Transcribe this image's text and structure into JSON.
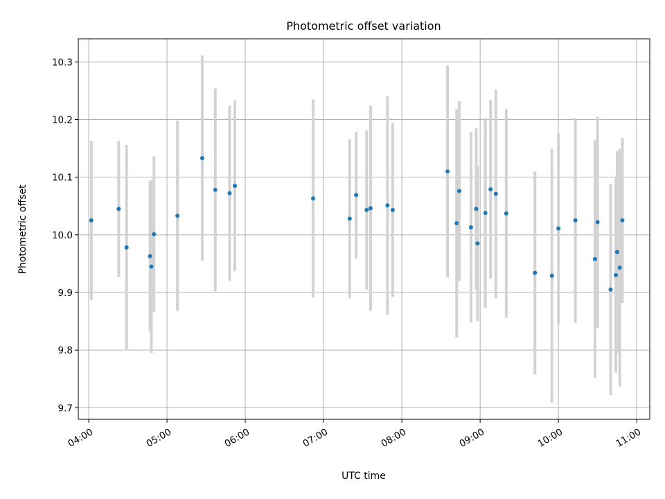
{
  "chart_data": {
    "type": "scatter",
    "title": "Photometric offset variation",
    "xlabel": "UTC time",
    "ylabel": "Photometric offset",
    "x_unit": "UTC time (HH:MM)",
    "xlim": [
      "03:52",
      "11:10"
    ],
    "ylim": [
      9.68,
      10.34
    ],
    "x_ticks": [
      "04:00",
      "05:00",
      "06:00",
      "07:00",
      "08:00",
      "09:00",
      "10:00",
      "11:00"
    ],
    "y_ticks": [
      9.7,
      9.8,
      9.9,
      10.0,
      10.1,
      10.2,
      10.3
    ],
    "y_tick_labels": [
      "9.7",
      "9.8",
      "9.9",
      "10.0",
      "10.1",
      "10.2",
      "10.3"
    ],
    "grid": true,
    "point_color": "#1f77b4",
    "errorbar_color": "#d3d3d3",
    "series": [
      {
        "points": [
          {
            "x": "04:02",
            "y": 10.025,
            "yerr": 0.138
          },
          {
            "x": "04:23",
            "y": 10.045,
            "yerr": 0.118
          },
          {
            "x": "04:29",
            "y": 9.978,
            "yerr": 0.178
          },
          {
            "x": "04:47",
            "y": 9.963,
            "yerr": 0.13
          },
          {
            "x": "04:48",
            "y": 9.945,
            "yerr": 0.15
          },
          {
            "x": "04:50",
            "y": 10.001,
            "yerr": 0.135
          },
          {
            "x": "05:08",
            "y": 10.033,
            "yerr": 0.165
          },
          {
            "x": "05:27",
            "y": 10.133,
            "yerr": 0.178
          },
          {
            "x": "05:37",
            "y": 10.078,
            "yerr": 0.176
          },
          {
            "x": "05:48",
            "y": 10.072,
            "yerr": 0.152
          },
          {
            "x": "05:52",
            "y": 10.085,
            "yerr": 0.148
          },
          {
            "x": "06:52",
            "y": 10.063,
            "yerr": 0.172
          },
          {
            "x": "07:20",
            "y": 10.028,
            "yerr": 0.138
          },
          {
            "x": "07:25",
            "y": 10.069,
            "yerr": 0.11
          },
          {
            "x": "07:33",
            "y": 10.043,
            "yerr": 0.138
          },
          {
            "x": "07:36",
            "y": 10.046,
            "yerr": 0.178
          },
          {
            "x": "07:49",
            "y": 10.051,
            "yerr": 0.19
          },
          {
            "x": "07:53",
            "y": 10.043,
            "yerr": 0.151
          },
          {
            "x": "08:35",
            "y": 10.11,
            "yerr": 0.184
          },
          {
            "x": "08:42",
            "y": 10.02,
            "yerr": 0.198
          },
          {
            "x": "08:44",
            "y": 10.076,
            "yerr": 0.156
          },
          {
            "x": "08:53",
            "y": 10.013,
            "yerr": 0.165
          },
          {
            "x": "08:57",
            "y": 10.045,
            "yerr": 0.14
          },
          {
            "x": "08:58",
            "y": 9.985,
            "yerr": 0.135
          },
          {
            "x": "09:04",
            "y": 10.038,
            "yerr": 0.165
          },
          {
            "x": "09:08",
            "y": 10.079,
            "yerr": 0.155
          },
          {
            "x": "09:12",
            "y": 10.071,
            "yerr": 0.181
          },
          {
            "x": "09:20",
            "y": 10.037,
            "yerr": 0.181
          },
          {
            "x": "09:42",
            "y": 9.934,
            "yerr": 0.176
          },
          {
            "x": "09:55",
            "y": 9.929,
            "yerr": 0.22
          },
          {
            "x": "10:00",
            "y": 10.011,
            "yerr": 0.166
          },
          {
            "x": "10:13",
            "y": 10.025,
            "yerr": 0.178
          },
          {
            "x": "10:28",
            "y": 9.958,
            "yerr": 0.206
          },
          {
            "x": "10:30",
            "y": 10.022,
            "yerr": 0.183
          },
          {
            "x": "10:40",
            "y": 9.905,
            "yerr": 0.183
          },
          {
            "x": "10:44",
            "y": 9.93,
            "yerr": 0.169
          },
          {
            "x": "10:45",
            "y": 9.97,
            "yerr": 0.175
          },
          {
            "x": "10:47",
            "y": 9.943,
            "yerr": 0.206
          },
          {
            "x": "10:49",
            "y": 10.025,
            "yerr": 0.143
          }
        ]
      }
    ]
  }
}
